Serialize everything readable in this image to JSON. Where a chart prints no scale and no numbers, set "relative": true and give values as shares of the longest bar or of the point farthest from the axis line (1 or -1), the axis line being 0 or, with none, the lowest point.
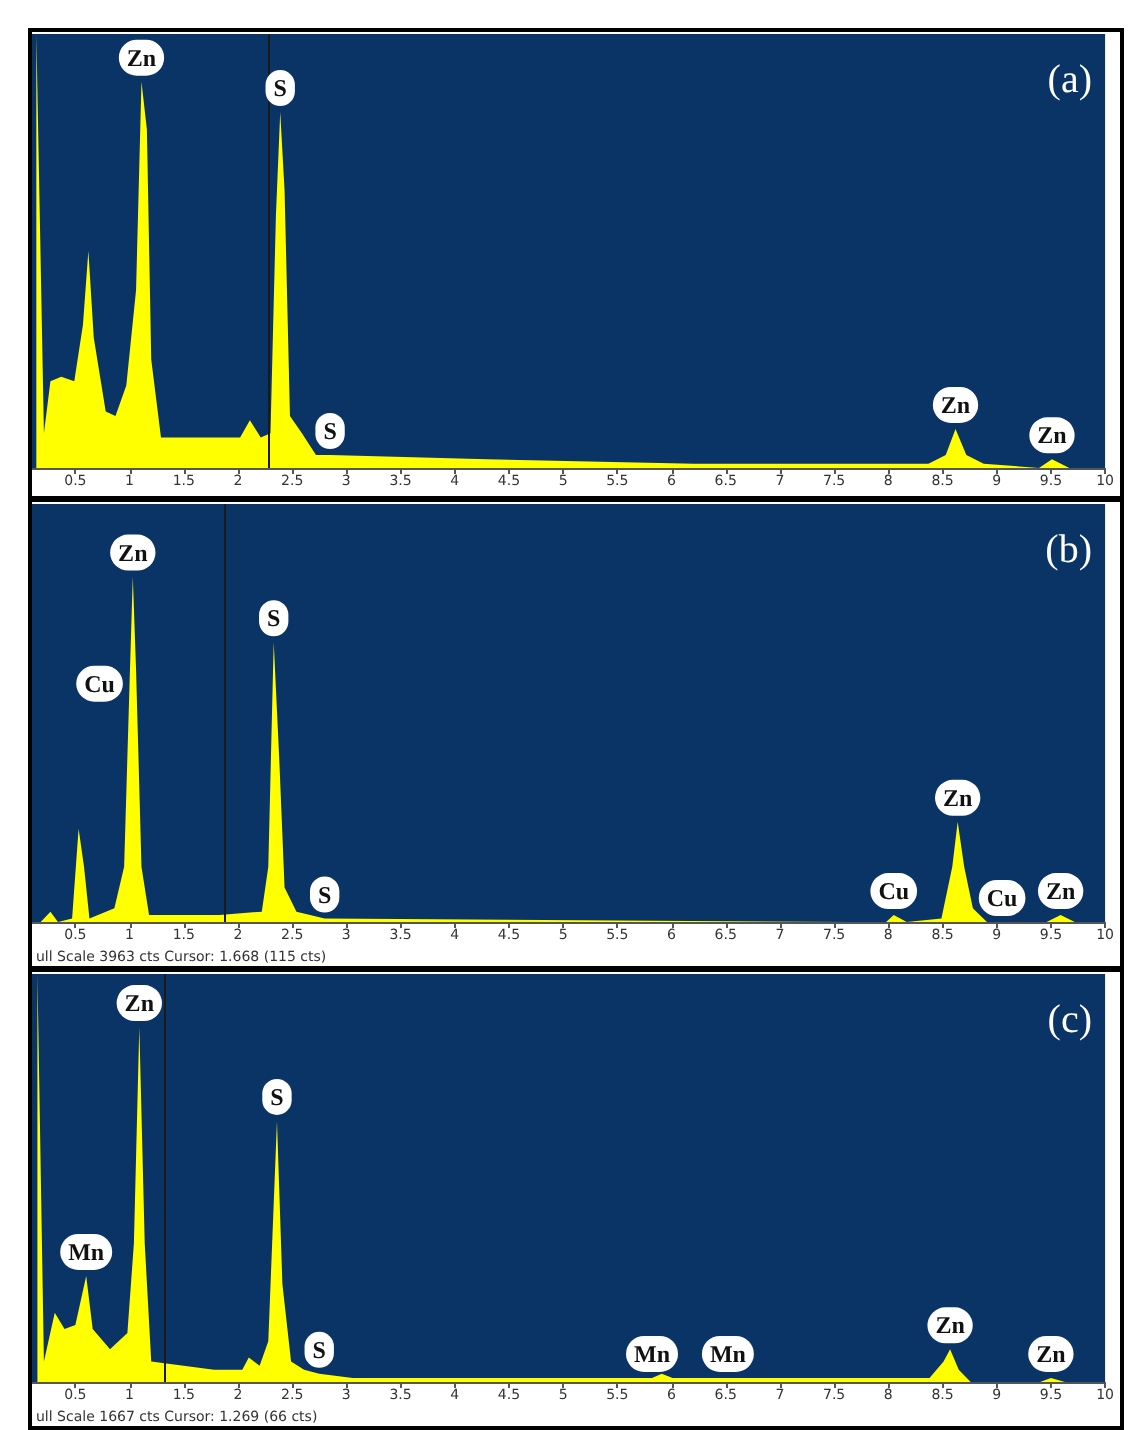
{
  "chart_data": [
    {
      "type": "area",
      "relative": true,
      "color": "#ffff00",
      "x": [
        0.14,
        0.21,
        0.27,
        0.37,
        0.49,
        0.57,
        0.62,
        0.67,
        0.78,
        0.87,
        0.97,
        1.06,
        1.11,
        1.16,
        1.2,
        1.29,
        1.76,
        2.02,
        2.11,
        2.21,
        2.3,
        2.35,
        2.39,
        2.43,
        2.48,
        2.59,
        2.72,
        2.85,
        4.3,
        6.21,
        8.37,
        8.53,
        8.62,
        8.72,
        8.88,
        9.39,
        9.51,
        9.67,
        9.8
      ],
      "values": [
        1.0,
        0.08,
        0.2,
        0.21,
        0.2,
        0.33,
        0.5,
        0.3,
        0.13,
        0.12,
        0.19,
        0.41,
        0.89,
        0.78,
        0.25,
        0.07,
        0.07,
        0.07,
        0.11,
        0.07,
        0.08,
        0.58,
        0.82,
        0.64,
        0.12,
        0.08,
        0.03,
        0.03,
        0.02,
        0.01,
        0.01,
        0.03,
        0.09,
        0.03,
        0.01,
        0.0,
        0.02,
        0.0,
        0.0
      ],
      "xlim": [
        0.1,
        10
      ],
      "xticks": [
        0.5,
        1,
        1.5,
        2,
        2.5,
        3,
        3.5,
        4,
        4.5,
        5,
        5.5,
        6,
        6.5,
        7,
        7.5,
        8,
        8.5,
        9,
        9.5,
        10
      ],
      "ref_lines": [
        {
          "axis": "x",
          "value": 2.29,
          "color": "#1a1a1a"
        }
      ],
      "annotations": [
        {
          "text": "Zn",
          "x": 1.11,
          "y": 0.89
        },
        {
          "text": "S",
          "x": 2.39,
          "y": 0.82
        },
        {
          "text": "S",
          "x": 2.85,
          "y": 0.03
        },
        {
          "text": "Zn",
          "x": 8.62,
          "y": 0.09
        },
        {
          "text": "Zn",
          "x": 9.51,
          "y": 0.02
        },
        "(a)"
      ]
    },
    {
      "type": "area",
      "relative": true,
      "color": "#ffff00",
      "x": [
        0.18,
        0.27,
        0.34,
        0.47,
        0.53,
        0.58,
        0.63,
        0.86,
        0.95,
        1.0,
        1.03,
        1.06,
        1.11,
        1.18,
        1.83,
        2.22,
        2.28,
        2.33,
        2.38,
        2.43,
        2.54,
        2.8,
        7.65,
        7.98,
        8.05,
        8.17,
        8.49,
        8.59,
        8.64,
        8.7,
        8.78,
        8.91,
        9.05,
        9.46,
        9.59,
        9.72,
        9.98
      ],
      "values": [
        0.0,
        0.03,
        0.0,
        0.01,
        0.27,
        0.16,
        0.01,
        0.04,
        0.16,
        0.69,
        1.0,
        0.73,
        0.16,
        0.02,
        0.02,
        0.03,
        0.16,
        0.81,
        0.48,
        0.1,
        0.03,
        0.01,
        0.0,
        0.0,
        0.02,
        0.0,
        0.01,
        0.16,
        0.29,
        0.16,
        0.04,
        0.0,
        0.0,
        0.0,
        0.02,
        0.0,
        0.0
      ],
      "xlim": [
        0.1,
        10
      ],
      "xticks": [
        0.5,
        1,
        1.5,
        2,
        2.5,
        3,
        3.5,
        4,
        4.5,
        5,
        5.5,
        6,
        6.5,
        7,
        7.5,
        8,
        8.5,
        9,
        9.5,
        10
      ],
      "ref_lines": [
        {
          "axis": "x",
          "value": 1.87,
          "color": "#1a1a1a"
        }
      ],
      "annotations": [
        {
          "text": "Zn",
          "x": 1.03,
          "y": 1.0
        },
        {
          "text": "Cu",
          "x": 1.0,
          "y": 0.69
        },
        {
          "text": "S",
          "x": 2.33,
          "y": 0.81
        },
        {
          "text": "S",
          "x": 2.8,
          "y": 0.01
        },
        {
          "text": "Cu",
          "x": 8.05,
          "y": 0.02
        },
        {
          "text": "Zn",
          "x": 8.64,
          "y": 0.29
        },
        {
          "text": "Cu",
          "x": 9.05,
          "y": 0.0
        },
        {
          "text": "Zn",
          "x": 9.59,
          "y": 0.02
        },
        "(b)",
        "ull Scale 3963 cts Cursor: 1.668 (115 cts)"
      ]
    },
    {
      "type": "area",
      "relative": true,
      "color": "#ffff00",
      "x": [
        0.15,
        0.21,
        0.31,
        0.4,
        0.5,
        0.6,
        0.66,
        0.82,
        0.98,
        1.04,
        1.09,
        1.14,
        1.2,
        1.78,
        2.04,
        2.1,
        2.2,
        2.28,
        2.36,
        2.41,
        2.49,
        2.61,
        2.75,
        3.06,
        5.82,
        5.91,
        6.01,
        6.52,
        8.38,
        8.51,
        8.57,
        8.65,
        8.76,
        9.4,
        9.5,
        9.63,
        9.85
      ],
      "values": [
        1.0,
        0.05,
        0.17,
        0.13,
        0.14,
        0.26,
        0.13,
        0.08,
        0.12,
        0.34,
        0.87,
        0.34,
        0.05,
        0.03,
        0.03,
        0.06,
        0.04,
        0.1,
        0.64,
        0.24,
        0.05,
        0.03,
        0.02,
        0.01,
        0.01,
        0.02,
        0.01,
        0.01,
        0.01,
        0.05,
        0.08,
        0.03,
        0.0,
        0.0,
        0.01,
        0.0,
        0.0
      ],
      "xlim": [
        0.1,
        10
      ],
      "xticks": [
        0.5,
        1,
        1.5,
        2,
        2.5,
        3,
        3.5,
        4,
        4.5,
        5,
        5.5,
        6,
        6.5,
        7,
        7.5,
        8,
        8.5,
        9,
        9.5,
        10
      ],
      "ref_lines": [
        {
          "axis": "x",
          "value": 1.33,
          "color": "#1a1a1a"
        }
      ],
      "annotations": [
        {
          "text": "Zn",
          "x": 1.09,
          "y": 0.87
        },
        {
          "text": "Mn",
          "x": 0.6,
          "y": 0.26
        },
        {
          "text": "S",
          "x": 2.36,
          "y": 0.64
        },
        {
          "text": "S",
          "x": 2.75,
          "y": 0.02
        },
        {
          "text": "Mn",
          "x": 5.82,
          "y": 0.01
        },
        {
          "text": "Mn",
          "x": 6.52,
          "y": 0.01
        },
        {
          "text": "Zn",
          "x": 8.57,
          "y": 0.08
        },
        {
          "text": "Zn",
          "x": 9.5,
          "y": 0.01
        },
        "(c)",
        "ull Scale 1667 cts Cursor: 1.269 (66 cts)"
      ]
    }
  ]
}
